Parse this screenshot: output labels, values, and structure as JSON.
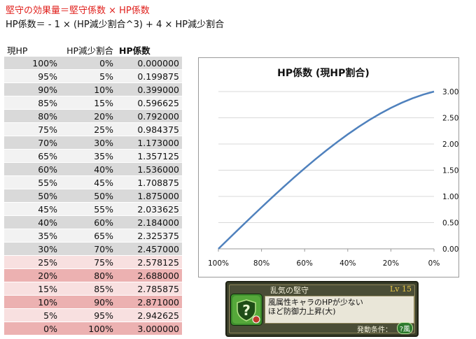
{
  "formula": {
    "line1": "堅守の効果量＝堅守係数 × HP係数",
    "line2": "HP係数＝ - 1 × (HP減少割合^3) + 4 × HP減少割合"
  },
  "table": {
    "headers": [
      "現HP",
      "HP減少割合",
      "HP係数"
    ],
    "rows": [
      {
        "hp": "100%",
        "dec": "0%",
        "coef": "0.000000"
      },
      {
        "hp": "95%",
        "dec": "5%",
        "coef": "0.199875"
      },
      {
        "hp": "90%",
        "dec": "10%",
        "coef": "0.399000"
      },
      {
        "hp": "85%",
        "dec": "15%",
        "coef": "0.596625"
      },
      {
        "hp": "80%",
        "dec": "20%",
        "coef": "0.792000"
      },
      {
        "hp": "75%",
        "dec": "25%",
        "coef": "0.984375"
      },
      {
        "hp": "70%",
        "dec": "30%",
        "coef": "1.173000"
      },
      {
        "hp": "65%",
        "dec": "35%",
        "coef": "1.357125"
      },
      {
        "hp": "60%",
        "dec": "40%",
        "coef": "1.536000"
      },
      {
        "hp": "55%",
        "dec": "45%",
        "coef": "1.708875"
      },
      {
        "hp": "50%",
        "dec": "50%",
        "coef": "1.875000"
      },
      {
        "hp": "45%",
        "dec": "55%",
        "coef": "2.033625"
      },
      {
        "hp": "40%",
        "dec": "60%",
        "coef": "2.184000"
      },
      {
        "hp": "35%",
        "dec": "65%",
        "coef": "2.325375"
      },
      {
        "hp": "30%",
        "dec": "70%",
        "coef": "2.457000"
      },
      {
        "hp": "25%",
        "dec": "75%",
        "coef": "2.578125"
      },
      {
        "hp": "20%",
        "dec": "80%",
        "coef": "2.688000"
      },
      {
        "hp": "15%",
        "dec": "85%",
        "coef": "2.785875"
      },
      {
        "hp": "10%",
        "dec": "90%",
        "coef": "2.871000"
      },
      {
        "hp": "5%",
        "dec": "95%",
        "coef": "2.942625"
      },
      {
        "hp": "0%",
        "dec": "100%",
        "coef": "3.000000"
      }
    ],
    "row_colors": [
      "#d9d9d9",
      "#f2f2f2",
      "#d9d9d9",
      "#f2f2f2",
      "#d9d9d9",
      "#f2f2f2",
      "#d9d9d9",
      "#f2f2f2",
      "#d9d9d9",
      "#f2f2f2",
      "#d9d9d9",
      "#f2f2f2",
      "#d9d9d9",
      "#f2f2f2",
      "#d9d9d9",
      "#f8e0e0",
      "#ecb1b1",
      "#f8e0e0",
      "#ecb1b1",
      "#f8e0e0",
      "#ecb1b1"
    ]
  },
  "chart_data": {
    "type": "line",
    "title": "HP係数 (現HP割合)",
    "x": [
      100,
      95,
      90,
      85,
      80,
      75,
      70,
      65,
      60,
      55,
      50,
      45,
      40,
      35,
      30,
      25,
      20,
      15,
      10,
      5,
      0
    ],
    "x_unit": "%",
    "x_reversed": true,
    "x_ticks": [
      "100%",
      "80%",
      "60%",
      "40%",
      "20%",
      "0%"
    ],
    "x_tick_values": [
      100,
      80,
      60,
      40,
      20,
      0
    ],
    "series": [
      {
        "values": [
          0,
          0.199875,
          0.399,
          0.596625,
          0.792,
          0.984375,
          1.173,
          1.357125,
          1.536,
          1.708875,
          1.875,
          2.033625,
          2.184,
          2.325375,
          2.457,
          2.578125,
          2.688,
          2.785875,
          2.871,
          2.942625,
          3.0
        ],
        "color": "#4f81bd"
      }
    ],
    "ylim": [
      0,
      3
    ],
    "y_ticks": [
      "0.00",
      "0.50",
      "1.00",
      "1.50",
      "2.00",
      "2.50",
      "3.00"
    ],
    "y_tick_values": [
      0,
      0.5,
      1,
      1.5,
      2,
      2.5,
      3
    ],
    "y_axis_side": "right",
    "grid": "horizontal",
    "legend": "none"
  },
  "skill_card": {
    "title": "乱気の堅守",
    "level": "Lv 15",
    "description": "風属性キャラのHPが少ないほど防御力上昇(大)",
    "trigger_label": "発動条件：",
    "element": "風",
    "icon": "shield-question-icon",
    "colors": {
      "frame": "#3a3f2a",
      "accent": "#e8c84a",
      "element": "#2d7a2e"
    }
  }
}
